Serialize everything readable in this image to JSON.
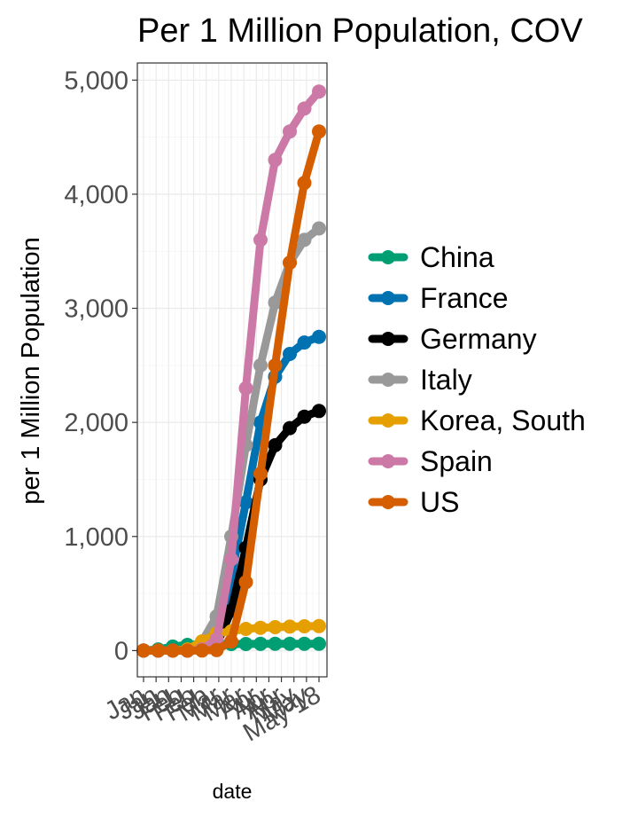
{
  "chart_data": {
    "type": "line",
    "title": "Per 1 Million Population, COV",
    "xlabel": "date",
    "ylabel": "per 1 Million Population",
    "x": [
      "Jan 22",
      "Feb 1",
      "Feb 11",
      "Feb 21",
      "Mar 2",
      "Mar 12",
      "Mar 22",
      "Apr 1",
      "Apr 11",
      "Apr 21",
      "May 1",
      "May 11",
      "May 18"
    ],
    "x_tick_labels": [
      "Jan",
      "Jan",
      "Jan",
      "Feb",
      "Feb",
      "Feb",
      "Mar",
      "Mar",
      "Mar",
      "Apr",
      "Apr",
      "Apr",
      "May",
      "May",
      "May 18"
    ],
    "y_ticks": [
      "0",
      "1,000",
      "2,000",
      "3,000",
      "4,000",
      "5,000"
    ],
    "ylim": [
      -230,
      5150
    ],
    "grid": true,
    "legend_position": "right",
    "series": [
      {
        "name": "China",
        "color": "#009E73",
        "values": [
          0,
          10,
          35,
          50,
          55,
          57,
          58,
          58,
          59,
          60,
          60,
          60,
          60
        ]
      },
      {
        "name": "France",
        "color": "#0072B2",
        "values": [
          0,
          0,
          0,
          0,
          5,
          100,
          650,
          1300,
          2000,
          2400,
          2600,
          2700,
          2750
        ]
      },
      {
        "name": "Germany",
        "color": "#000000",
        "values": [
          0,
          0,
          0,
          0,
          5,
          50,
          350,
          900,
          1500,
          1800,
          1950,
          2050,
          2100
        ]
      },
      {
        "name": "Italy",
        "color": "#999999",
        "values": [
          0,
          0,
          0,
          0,
          80,
          300,
          1000,
          1800,
          2500,
          3050,
          3400,
          3600,
          3700
        ]
      },
      {
        "name": "Korea, South",
        "color": "#E69F00",
        "values": [
          0,
          0,
          0,
          10,
          80,
          150,
          170,
          190,
          200,
          205,
          210,
          213,
          215
        ]
      },
      {
        "name": "Spain",
        "color": "#CC79A7",
        "values": [
          0,
          0,
          0,
          0,
          10,
          100,
          800,
          2300,
          3600,
          4300,
          4550,
          4750,
          4900
        ]
      },
      {
        "name": "US",
        "color": "#D55E00",
        "values": [
          0,
          0,
          0,
          0,
          1,
          5,
          80,
          600,
          1550,
          2500,
          3400,
          4100,
          4550
        ]
      }
    ]
  }
}
